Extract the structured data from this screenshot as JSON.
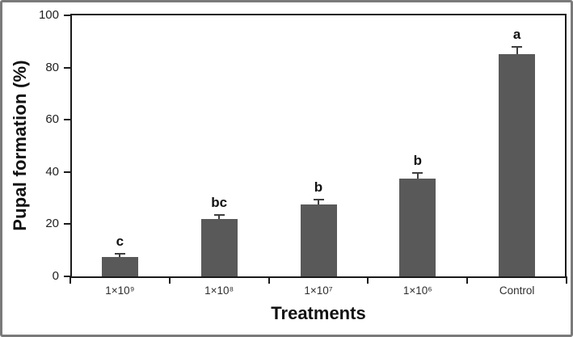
{
  "figure": {
    "background_color": "#ffffff",
    "outer_frame_color": "#7a7a7a",
    "axis_line_color": "#1a1a1a"
  },
  "chart_data": {
    "type": "bar",
    "title": "",
    "xlabel": "Treatments",
    "ylabel": "Pupal formation (%)",
    "categories": [
      "1×10⁹",
      "1×10⁸",
      "1×10⁷",
      "1×10⁶",
      "Control"
    ],
    "values": [
      7.5,
      22,
      27.5,
      37.5,
      85
    ],
    "error_bars_upper": [
      1.3,
      1.6,
      1.8,
      2.2,
      3.0
    ],
    "significance_letters": [
      "c",
      "bc",
      "b",
      "b",
      "a"
    ],
    "ylim": [
      0,
      100
    ],
    "yticks": [
      0,
      20,
      40,
      60,
      80,
      100
    ],
    "bar_color": "#595959",
    "error_bar_color": "#3f3f3f",
    "grid": "off",
    "legend": "none"
  }
}
